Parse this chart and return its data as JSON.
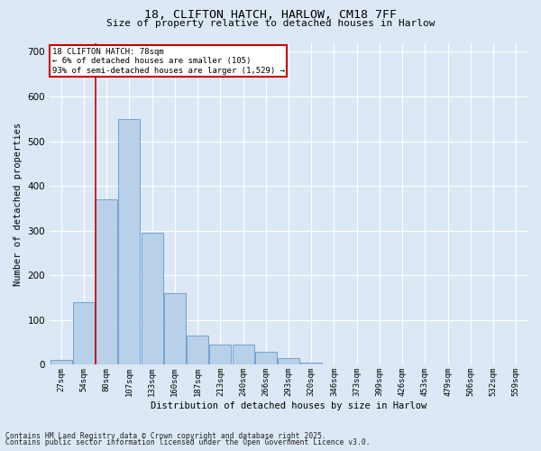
{
  "title1": "18, CLIFTON HATCH, HARLOW, CM18 7FF",
  "title2": "Size of property relative to detached houses in Harlow",
  "xlabel": "Distribution of detached houses by size in Harlow",
  "ylabel": "Number of detached properties",
  "bar_labels": [
    "27sqm",
    "54sqm",
    "80sqm",
    "107sqm",
    "133sqm",
    "160sqm",
    "187sqm",
    "213sqm",
    "240sqm",
    "266sqm",
    "293sqm",
    "320sqm",
    "346sqm",
    "373sqm",
    "399sqm",
    "426sqm",
    "453sqm",
    "479sqm",
    "506sqm",
    "532sqm",
    "559sqm"
  ],
  "bar_values": [
    10,
    140,
    370,
    550,
    295,
    160,
    65,
    45,
    45,
    30,
    15,
    5,
    0,
    0,
    0,
    0,
    0,
    0,
    0,
    0,
    0
  ],
  "bar_color": "#b8d0e8",
  "bar_edge_color": "#6699cc",
  "vline_x": 1.5,
  "vline_color": "#cc0000",
  "ylim": [
    0,
    720
  ],
  "yticks": [
    0,
    100,
    200,
    300,
    400,
    500,
    600,
    700
  ],
  "annotation_lines": [
    "18 CLIFTON HATCH: 78sqm",
    "← 6% of detached houses are smaller (105)",
    "93% of semi-detached houses are larger (1,529) →"
  ],
  "annotation_box_color": "#cc0000",
  "footer1": "Contains HM Land Registry data © Crown copyright and database right 2025.",
  "footer2": "Contains public sector information licensed under the Open Government Licence v3.0.",
  "bg_color": "#dce8f5",
  "plot_bg_color": "#dce8f5"
}
